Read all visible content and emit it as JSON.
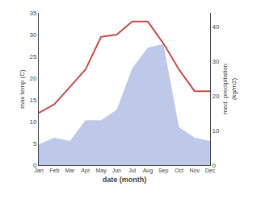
{
  "chart_data": {
    "type": "combo",
    "categories": [
      "Jan",
      "Feb",
      "Mar",
      "Apr",
      "May",
      "Jun",
      "Jul",
      "Aug",
      "Sep",
      "Oct",
      "Nov",
      "Dec"
    ],
    "series": [
      {
        "type": "area",
        "color": "#bec8e8",
        "axis": "y2",
        "values": [
          6,
          8,
          7,
          13,
          13,
          16,
          28,
          34,
          35,
          11,
          8,
          7
        ]
      },
      {
        "type": "line",
        "color": "#c0504d",
        "values": [
          12,
          14,
          18,
          22,
          29.5,
          30,
          33,
          33,
          28,
          22,
          17,
          17
        ]
      }
    ],
    "xlabel": "date (month)",
    "ylabel": "max temp (C)",
    "y2label": "med. precipitation\n(kg/m2)",
    "ylim": [
      0,
      35
    ],
    "yticks": [
      0,
      5,
      10,
      15,
      20,
      25,
      30,
      35
    ],
    "y2lim": [
      0,
      44
    ],
    "y2ticks": [
      0,
      10,
      20,
      30,
      40
    ],
    "grid": false
  }
}
